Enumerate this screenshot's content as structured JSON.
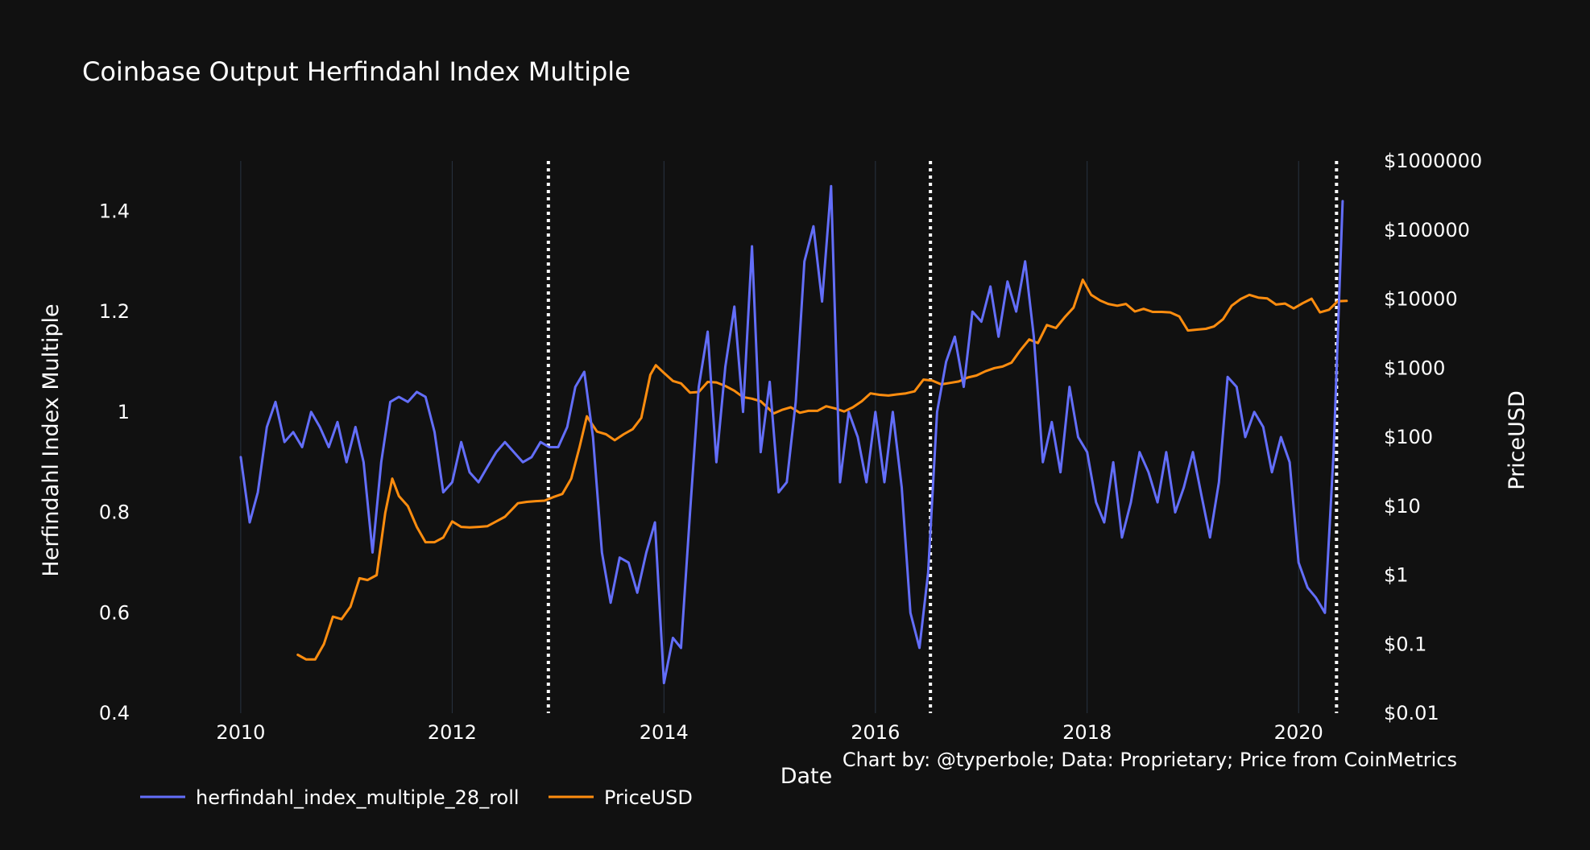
{
  "chart_data": {
    "type": "line",
    "title": "Coinbase Output Herfindahl Index Multiple",
    "xlabel": "Date",
    "ylabel": "Herfindahl Index Multiple",
    "y2label": "PriceUSD",
    "annotation": "Chart by: @typerbole; Data: Proprietary; Price from CoinMetrics",
    "xlim": [
      "2009-04-01",
      "2020-09-15"
    ],
    "ylim": [
      0.4,
      1.5
    ],
    "y2lim": [
      0.01,
      1000000
    ],
    "y2scale": "log",
    "grid": "vertical",
    "legend_position": "bottom-left",
    "x_ticks": [
      "2010",
      "2012",
      "2014",
      "2016",
      "2018",
      "2020"
    ],
    "x_tick_dates": [
      "2010-01-01",
      "2012-01-01",
      "2014-01-01",
      "2016-01-01",
      "2018-01-01",
      "2020-01-01"
    ],
    "y_ticks": [
      {
        "value": 0.4,
        "label": "0.4"
      },
      {
        "value": 0.6,
        "label": "0.6"
      },
      {
        "value": 0.8,
        "label": "0.8"
      },
      {
        "value": 1,
        "label": "1"
      },
      {
        "value": 1.2,
        "label": "1.2"
      },
      {
        "value": 1.4,
        "label": "1.4"
      }
    ],
    "y2_ticks": [
      {
        "value": 0.01,
        "label": "$0.01"
      },
      {
        "value": 0.1,
        "label": "$0.1"
      },
      {
        "value": 1,
        "label": "$1"
      },
      {
        "value": 10,
        "label": "$10"
      },
      {
        "value": 100,
        "label": "$100"
      },
      {
        "value": 1000,
        "label": "$1000"
      },
      {
        "value": 10000,
        "label": "$10000"
      },
      {
        "value": 100000,
        "label": "$100000"
      },
      {
        "value": 1000000,
        "label": "$1000000"
      }
    ],
    "vlines": [
      "2012-11-28",
      "2016-07-09",
      "2020-05-11"
    ],
    "series": [
      {
        "name": "herfindahl_index_multiple_28_roll",
        "axis": "y",
        "color": "#636efa",
        "x": [
          "2010-01-01",
          "2010-02-01",
          "2010-03-01",
          "2010-04-01",
          "2010-05-01",
          "2010-06-01",
          "2010-07-01",
          "2010-08-01",
          "2010-09-01",
          "2010-10-01",
          "2010-11-01",
          "2010-12-01",
          "2011-01-01",
          "2011-02-01",
          "2011-03-01",
          "2011-04-01",
          "2011-05-01",
          "2011-06-01",
          "2011-07-01",
          "2011-08-01",
          "2011-09-01",
          "2011-10-01",
          "2011-11-01",
          "2011-12-01",
          "2012-01-01",
          "2012-02-01",
          "2012-03-01",
          "2012-04-01",
          "2012-05-01",
          "2012-06-01",
          "2012-07-01",
          "2012-08-01",
          "2012-09-01",
          "2012-10-01",
          "2012-11-01",
          "2012-12-01",
          "2013-01-01",
          "2013-02-01",
          "2013-03-01",
          "2013-04-01",
          "2013-05-01",
          "2013-06-01",
          "2013-07-01",
          "2013-08-01",
          "2013-09-01",
          "2013-10-01",
          "2013-11-01",
          "2013-12-01",
          "2014-01-01",
          "2014-02-01",
          "2014-03-01",
          "2014-04-01",
          "2014-05-01",
          "2014-06-01",
          "2014-07-01",
          "2014-08-01",
          "2014-09-01",
          "2014-10-01",
          "2014-11-01",
          "2014-12-01",
          "2015-01-01",
          "2015-02-01",
          "2015-03-01",
          "2015-04-01",
          "2015-05-01",
          "2015-06-01",
          "2015-07-01",
          "2015-08-01",
          "2015-09-01",
          "2015-10-01",
          "2015-11-01",
          "2015-12-01",
          "2016-01-01",
          "2016-02-01",
          "2016-03-01",
          "2016-04-01",
          "2016-05-01",
          "2016-06-01",
          "2016-07-01",
          "2016-08-01",
          "2016-09-01",
          "2016-10-01",
          "2016-11-01",
          "2016-12-01",
          "2017-01-01",
          "2017-02-01",
          "2017-03-01",
          "2017-04-01",
          "2017-05-01",
          "2017-06-01",
          "2017-07-01",
          "2017-08-01",
          "2017-09-01",
          "2017-10-01",
          "2017-11-01",
          "2017-12-01",
          "2018-01-01",
          "2018-02-01",
          "2018-03-01",
          "2018-04-01",
          "2018-05-01",
          "2018-06-01",
          "2018-07-01",
          "2018-08-01",
          "2018-09-01",
          "2018-10-01",
          "2018-11-01",
          "2018-12-01",
          "2019-01-01",
          "2019-02-01",
          "2019-03-01",
          "2019-04-01",
          "2019-05-01",
          "2019-06-01",
          "2019-07-01",
          "2019-08-01",
          "2019-09-01",
          "2019-10-01",
          "2019-11-01",
          "2019-12-01",
          "2020-01-01",
          "2020-02-01",
          "2020-03-01",
          "2020-04-01",
          "2020-05-01",
          "2020-06-01"
        ],
        "y": [
          0.91,
          0.78,
          0.84,
          0.97,
          1.02,
          0.94,
          0.96,
          0.93,
          1.0,
          0.97,
          0.93,
          0.98,
          0.9,
          0.97,
          0.9,
          0.72,
          0.9,
          1.02,
          1.03,
          1.02,
          1.04,
          1.03,
          0.96,
          0.84,
          0.86,
          0.94,
          0.88,
          0.86,
          0.89,
          0.92,
          0.94,
          0.92,
          0.9,
          0.91,
          0.94,
          0.93,
          0.93,
          0.97,
          1.05,
          1.08,
          0.95,
          0.72,
          0.62,
          0.71,
          0.7,
          0.64,
          0.72,
          0.78,
          0.46,
          0.55,
          0.53,
          0.8,
          1.05,
          1.16,
          0.9,
          1.09,
          1.21,
          1.0,
          1.33,
          0.92,
          1.06,
          0.84,
          0.86,
          1.02,
          1.3,
          1.37,
          1.22,
          1.45,
          0.86,
          1.0,
          0.95,
          0.86,
          1.0,
          0.86,
          1.0,
          0.85,
          0.6,
          0.53,
          0.68,
          1.0,
          1.1,
          1.15,
          1.05,
          1.2,
          1.18,
          1.25,
          1.15,
          1.26,
          1.2,
          1.3,
          1.15,
          0.9,
          0.98,
          0.88,
          1.05,
          0.95,
          0.92,
          0.82,
          0.78,
          0.9,
          0.75,
          0.82,
          0.92,
          0.88,
          0.82,
          0.92,
          0.8,
          0.85,
          0.92,
          0.83,
          0.75,
          0.86,
          1.07,
          1.05,
          0.95,
          1.0,
          0.97,
          0.88,
          0.95,
          0.9,
          0.7,
          0.65,
          0.63,
          0.6,
          0.92,
          1.42
        ]
      },
      {
        "name": "PriceUSD",
        "axis": "y2",
        "color": "#ff8d0f",
        "x": [
          "2010-07-17",
          "2010-08-15",
          "2010-09-15",
          "2010-10-15",
          "2010-11-15",
          "2010-12-15",
          "2011-01-15",
          "2011-02-15",
          "2011-03-15",
          "2011-04-15",
          "2011-05-15",
          "2011-06-08",
          "2011-07-01",
          "2011-08-01",
          "2011-09-01",
          "2011-10-01",
          "2011-11-01",
          "2011-12-01",
          "2012-01-01",
          "2012-02-01",
          "2012-03-01",
          "2012-04-01",
          "2012-05-01",
          "2012-06-01",
          "2012-07-01",
          "2012-08-15",
          "2012-09-15",
          "2012-10-15",
          "2012-11-15",
          "2012-12-15",
          "2013-01-15",
          "2013-02-15",
          "2013-03-15",
          "2013-04-10",
          "2013-05-15",
          "2013-06-15",
          "2013-07-15",
          "2013-08-15",
          "2013-09-15",
          "2013-10-15",
          "2013-11-15",
          "2013-12-04",
          "2014-01-01",
          "2014-02-01",
          "2014-03-01",
          "2014-04-01",
          "2014-05-01",
          "2014-06-01",
          "2014-07-01",
          "2014-08-01",
          "2014-09-01",
          "2014-10-01",
          "2014-11-01",
          "2014-12-01",
          "2015-01-15",
          "2015-02-15",
          "2015-03-15",
          "2015-04-15",
          "2015-05-15",
          "2015-06-15",
          "2015-07-15",
          "2015-08-15",
          "2015-09-15",
          "2015-10-15",
          "2015-11-15",
          "2015-12-15",
          "2016-01-15",
          "2016-02-15",
          "2016-03-15",
          "2016-04-15",
          "2016-05-15",
          "2016-06-15",
          "2016-07-15",
          "2016-08-15",
          "2016-09-15",
          "2016-10-15",
          "2016-11-15",
          "2016-12-15",
          "2017-01-15",
          "2017-02-15",
          "2017-03-15",
          "2017-04-15",
          "2017-05-15",
          "2017-06-15",
          "2017-07-15",
          "2017-08-15",
          "2017-09-15",
          "2017-10-15",
          "2017-11-15",
          "2017-12-17",
          "2018-01-15",
          "2018-02-15",
          "2018-03-15",
          "2018-04-15",
          "2018-05-15",
          "2018-06-15",
          "2018-07-15",
          "2018-08-15",
          "2018-09-15",
          "2018-10-15",
          "2018-11-15",
          "2018-12-15",
          "2019-01-15",
          "2019-02-15",
          "2019-03-15",
          "2019-04-15",
          "2019-05-15",
          "2019-06-15",
          "2019-07-15",
          "2019-08-15",
          "2019-09-15",
          "2019-10-15",
          "2019-11-15",
          "2019-12-15",
          "2020-01-15",
          "2020-02-15",
          "2020-03-15",
          "2020-04-15",
          "2020-05-15",
          "2020-06-15"
        ],
        "y": [
          0.07,
          0.06,
          0.06,
          0.1,
          0.25,
          0.23,
          0.35,
          0.9,
          0.85,
          1.0,
          8.0,
          25.0,
          14.0,
          10.0,
          5.0,
          3.0,
          3.0,
          3.5,
          6.0,
          5.0,
          4.9,
          5.0,
          5.1,
          6.0,
          7.0,
          11.0,
          11.5,
          11.8,
          12.0,
          13.5,
          15.0,
          25.0,
          70.0,
          200.0,
          120.0,
          110.0,
          90.0,
          110.0,
          130.0,
          190.0,
          800.0,
          1100.0,
          850.0,
          650.0,
          600.0,
          440.0,
          450.0,
          630.0,
          620.0,
          550.0,
          470.0,
          380.0,
          360.0,
          330.0,
          220.0,
          250.0,
          270.0,
          225.0,
          240.0,
          240.0,
          280.0,
          260.0,
          235.0,
          270.0,
          330.0,
          430.0,
          410.0,
          400.0,
          415.0,
          430.0,
          460.0,
          680.0,
          660.0,
          580.0,
          610.0,
          640.0,
          730.0,
          780.0,
          900.0,
          1000.0,
          1050.0,
          1200.0,
          1800.0,
          2600.0,
          2300.0,
          4200.0,
          3800.0,
          5400.0,
          7500.0,
          19000.0,
          11500.0,
          9500.0,
          8500.0,
          8000.0,
          8500.0,
          6600.0,
          7200.0,
          6500.0,
          6500.0,
          6400.0,
          5600.0,
          3500.0,
          3600.0,
          3700.0,
          4000.0,
          5100.0,
          8000.0,
          10000.0,
          11500.0,
          10500.0,
          10200.0,
          8300.0,
          8600.0,
          7300.0,
          8700.0,
          10100.0,
          6400.0,
          7000.0,
          9300.0,
          9400.0
        ]
      }
    ]
  }
}
